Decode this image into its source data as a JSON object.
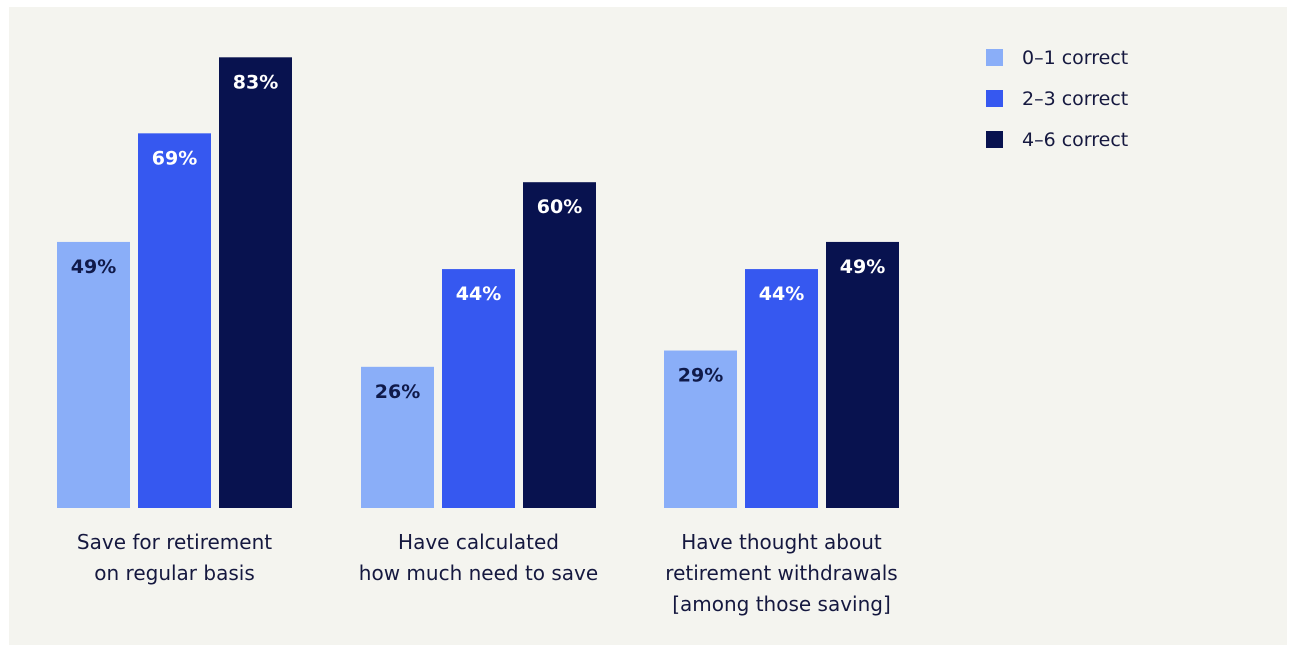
{
  "colors": {
    "background": "#f4f4ef",
    "series": [
      "#8aaef8",
      "#3658f0",
      "#08124f"
    ],
    "label_on_light": "#101a4a",
    "label_on_dark": "#ffffff"
  },
  "chart_data": {
    "type": "bar",
    "categories": [
      [
        "Save for retirement",
        "on regular basis"
      ],
      [
        "Have calculated",
        "how much need to save"
      ],
      [
        "Have thought about",
        "retirement withdrawals",
        "[among those saving]"
      ]
    ],
    "series": [
      {
        "name": "0–1 correct",
        "values": [
          49,
          26,
          29
        ],
        "labels": [
          "49%",
          "26%",
          "29%"
        ]
      },
      {
        "name": "2–3 correct",
        "values": [
          69,
          44,
          44
        ],
        "labels": [
          "69%",
          "44%",
          "44%"
        ]
      },
      {
        "name": "4–6 correct",
        "values": [
          83,
          60,
          49
        ],
        "labels": [
          "83%",
          "60%",
          "49%"
        ]
      }
    ],
    "ylim": [
      0,
      100
    ],
    "grid": false,
    "legend_position": "top-right",
    "title": "",
    "xlabel": "",
    "ylabel": ""
  }
}
